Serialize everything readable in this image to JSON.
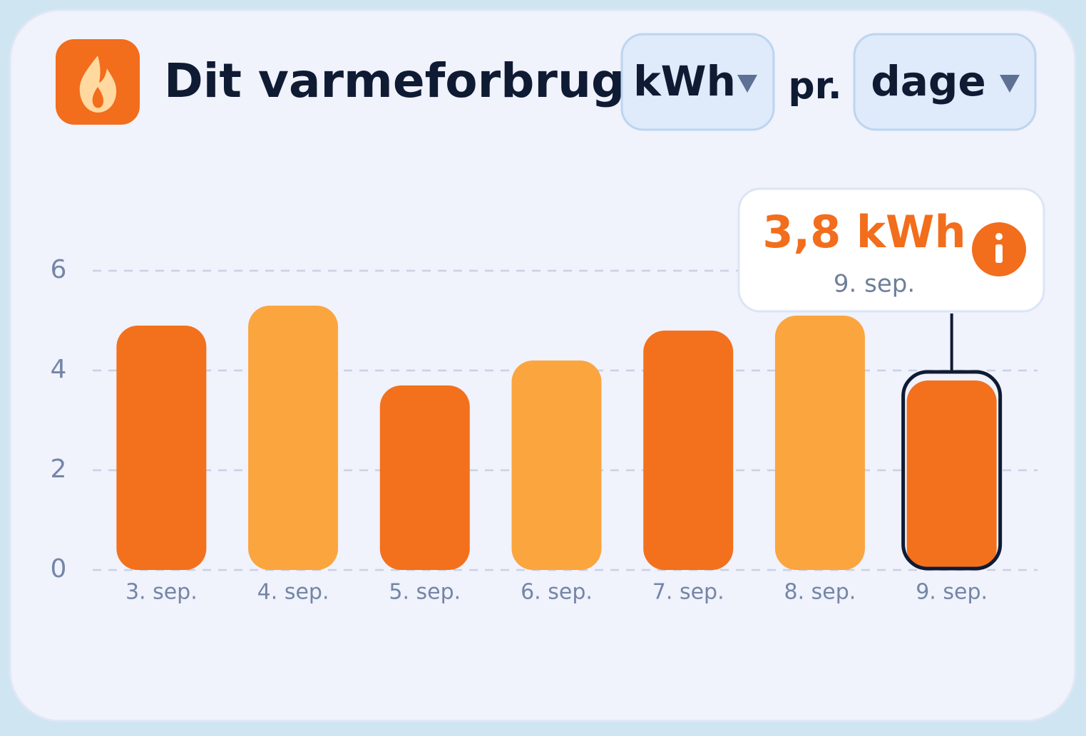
{
  "header": {
    "title": "Dit varmeforbrug",
    "unit_select": "kWh",
    "per": "pr.",
    "period_select": "dage"
  },
  "chart_data": {
    "type": "bar",
    "categories": [
      "3. sep.",
      "4. sep.",
      "5. sep.",
      "6. sep.",
      "7. sep.",
      "8. sep.",
      "9. sep."
    ],
    "values": [
      4.9,
      5.3,
      3.7,
      4.2,
      4.8,
      5.1,
      3.8
    ],
    "value_labels": [
      null,
      null,
      null,
      null,
      null,
      null,
      "3,8 kWh"
    ],
    "colors": [
      "#f3711c",
      "#fba53f",
      "#f3711c",
      "#fba53f",
      "#f3711c",
      "#fba53f",
      "#f3711c"
    ],
    "ylim": [
      0,
      6
    ],
    "yticks": [
      0,
      2,
      4,
      6
    ],
    "grid": true,
    "highlight_index": 6
  }
}
